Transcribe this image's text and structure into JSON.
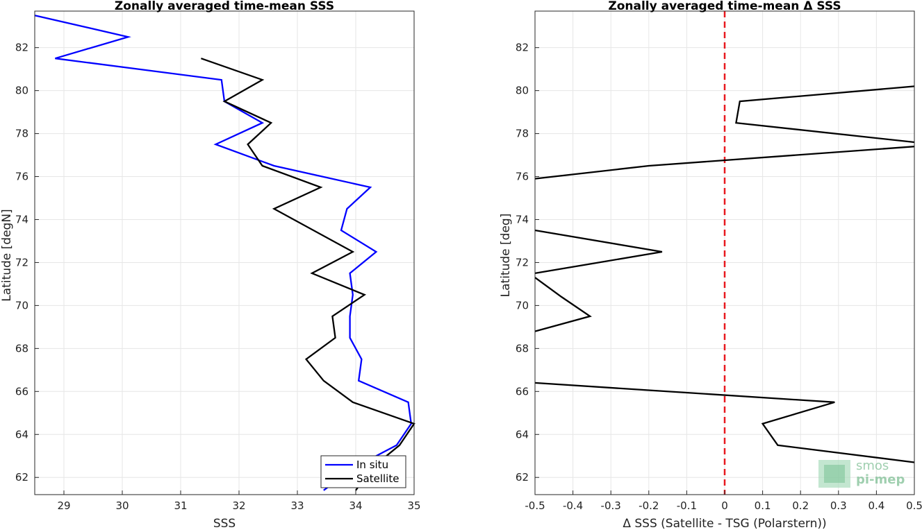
{
  "chart_data": [
    {
      "type": "line",
      "title": "Zonally averaged time-mean SSS",
      "xlabel": "SSS",
      "ylabel": "Latitude [degN]",
      "xlim": [
        28.5,
        35
      ],
      "ylim": [
        61.2,
        83.7
      ],
      "xticks": [
        29,
        30,
        31,
        32,
        33,
        34,
        35
      ],
      "yticks": [
        62,
        64,
        66,
        68,
        70,
        72,
        74,
        76,
        78,
        80,
        82
      ],
      "grid": true,
      "legend": "bottom-right",
      "series": [
        {
          "name": "In situ",
          "color": "#0000ff",
          "points": [
            [
              28.5,
              83.5
            ],
            [
              30.1,
              82.5
            ],
            [
              28.85,
              81.5
            ],
            [
              31.7,
              80.5
            ],
            [
              31.75,
              79.5
            ],
            [
              32.4,
              78.5
            ],
            [
              31.6,
              77.5
            ],
            [
              32.6,
              76.5
            ],
            [
              34.25,
              75.5
            ],
            [
              33.85,
              74.5
            ],
            [
              33.75,
              73.5
            ],
            [
              34.35,
              72.5
            ],
            [
              33.9,
              71.5
            ],
            [
              33.95,
              70.5
            ],
            [
              33.9,
              69.5
            ],
            [
              33.9,
              68.5
            ],
            [
              34.1,
              67.5
            ],
            [
              34.05,
              66.5
            ],
            [
              34.9,
              65.5
            ],
            [
              34.95,
              64.5
            ],
            [
              34.7,
              63.5
            ],
            [
              34.0,
              62.5
            ],
            [
              33.45,
              61.4
            ]
          ]
        },
        {
          "name": "Satellite",
          "color": "#000000",
          "points": [
            [
              31.35,
              81.5
            ],
            [
              32.4,
              80.5
            ],
            [
              31.75,
              79.5
            ],
            [
              32.55,
              78.5
            ],
            [
              32.15,
              77.5
            ],
            [
              32.4,
              76.5
            ],
            [
              33.4,
              75.5
            ],
            [
              32.6,
              74.5
            ],
            [
              33.95,
              72.5
            ],
            [
              33.25,
              71.5
            ],
            [
              34.15,
              70.5
            ],
            [
              33.6,
              69.5
            ],
            [
              33.65,
              68.5
            ],
            [
              33.15,
              67.5
            ],
            [
              33.45,
              66.5
            ],
            [
              33.95,
              65.5
            ],
            [
              35.0,
              64.5
            ],
            [
              34.75,
              63.5
            ],
            [
              34.3,
              62.5
            ],
            [
              34.0,
              61.4
            ]
          ]
        }
      ]
    },
    {
      "type": "line",
      "title": "Zonally averaged time-mean Δ SSS",
      "xlabel": "Δ SSS (Satellite - TSG (Polarstern))",
      "ylabel": "Latitude [deg]",
      "xlim": [
        -0.5,
        0.5
      ],
      "ylim": [
        61.2,
        83.7
      ],
      "xticks": [
        "-0.5",
        "-0.4",
        "-0.3",
        "-0.2",
        "-0.1",
        "0",
        "0.1",
        "0.2",
        "0.3",
        "0.4",
        "0.5"
      ],
      "yticks": [
        62,
        64,
        66,
        68,
        70,
        72,
        74,
        76,
        78,
        80,
        82
      ],
      "grid": true,
      "reference_line": {
        "x": 0,
        "color": "#e8181e",
        "style": "dashed"
      },
      "series": [
        {
          "color": "#000000",
          "segments": [
            [
              [
                0.5,
                80.2
              ],
              [
                0.04,
                79.5
              ],
              [
                0.03,
                78.5
              ],
              [
                0.5,
                77.6
              ]
            ],
            [
              [
                0.5,
                77.4
              ],
              [
                -0.2,
                76.5
              ],
              [
                -0.5,
                75.9
              ]
            ],
            [
              [
                -0.5,
                73.5
              ],
              [
                -0.165,
                72.5
              ],
              [
                -0.5,
                71.5
              ]
            ],
            [
              [
                -0.5,
                71.3
              ],
              [
                -0.43,
                70.4
              ],
              [
                -0.355,
                69.5
              ],
              [
                -0.5,
                68.8
              ]
            ],
            [
              [
                -0.5,
                66.4
              ],
              [
                0.29,
                65.5
              ],
              [
                0.1,
                64.5
              ],
              [
                0.14,
                63.5
              ],
              [
                0.5,
                62.7
              ]
            ]
          ]
        }
      ]
    }
  ],
  "legend": {
    "items": [
      {
        "label": "In situ",
        "color": "#0000ff"
      },
      {
        "label": "Satellite",
        "color": "#000000"
      }
    ]
  },
  "watermark": {
    "line1": "smos",
    "line2": "pi-mep",
    "color": "#7fbf95"
  }
}
